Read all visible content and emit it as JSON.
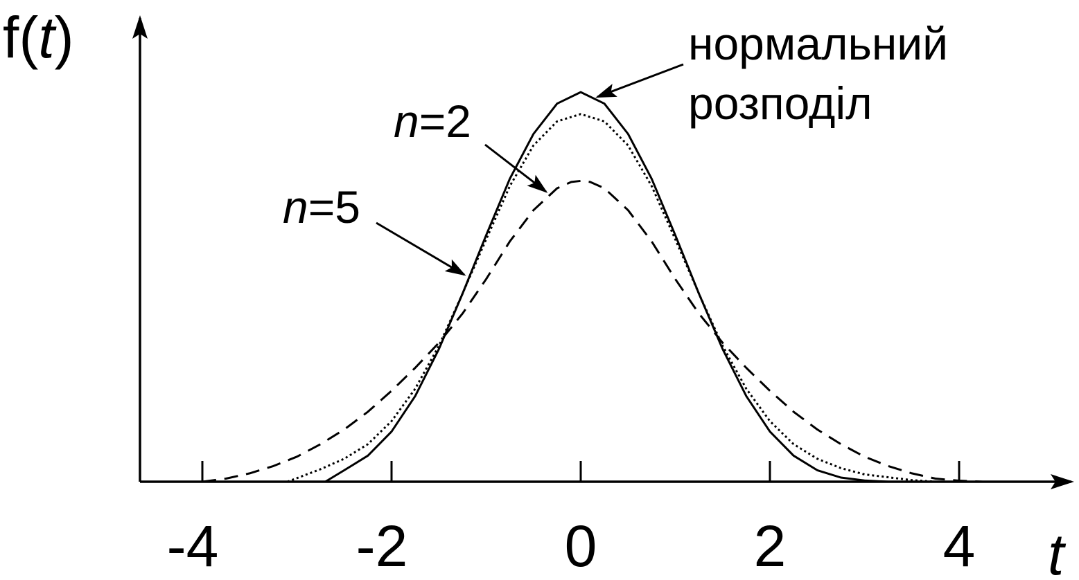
{
  "chart_data": {
    "type": "line",
    "title": "",
    "ylabel": {
      "prefix": "f(",
      "var": "t",
      "suffix": ")"
    },
    "xlabel": "t",
    "xlim": [
      -4.3,
      5.1
    ],
    "ylim": [
      0,
      0.44
    ],
    "grid": false,
    "xticks": [
      {
        "value": -4,
        "label": "-4"
      },
      {
        "value": -2,
        "label": "-2"
      },
      {
        "value": 0,
        "label": "0"
      },
      {
        "value": 2,
        "label": "2"
      },
      {
        "value": 4,
        "label": "4"
      }
    ],
    "series": [
      {
        "key": "normal",
        "style": "solid",
        "x": [
          -2.7,
          -2.5,
          -2.25,
          -2.0,
          -1.75,
          -1.5,
          -1.25,
          -1.0,
          -0.75,
          -0.5,
          -0.25,
          0.0,
          0.25,
          0.5,
          0.75,
          1.0,
          1.25,
          1.5,
          1.75,
          2.0,
          2.25,
          2.5,
          2.75,
          3.0,
          3.25
        ],
        "y": [
          0.0,
          0.011,
          0.025,
          0.048,
          0.082,
          0.127,
          0.18,
          0.236,
          0.29,
          0.333,
          0.362,
          0.373,
          0.362,
          0.333,
          0.29,
          0.236,
          0.18,
          0.127,
          0.082,
          0.048,
          0.025,
          0.011,
          0.004,
          0.0012,
          0.0
        ]
      },
      {
        "key": "n2",
        "style": "dotted",
        "x": [
          -3.1,
          -2.75,
          -2.5,
          -2.25,
          -2.0,
          -1.75,
          -1.5,
          -1.25,
          -1.0,
          -0.75,
          -0.5,
          -0.25,
          0.0,
          0.25,
          0.5,
          0.75,
          1.0,
          1.25,
          1.5,
          1.75,
          2.0,
          2.25,
          2.5,
          2.75,
          3.0,
          3.5,
          3.75
        ],
        "y": [
          0.0,
          0.012,
          0.022,
          0.036,
          0.058,
          0.089,
          0.13,
          0.18,
          0.232,
          0.283,
          0.322,
          0.345,
          0.352,
          0.345,
          0.322,
          0.283,
          0.232,
          0.18,
          0.13,
          0.089,
          0.058,
          0.036,
          0.022,
          0.013,
          0.007,
          0.0015,
          0.0
        ]
      },
      {
        "key": "n5",
        "style": "dashed",
        "x": [
          -4.0,
          -3.75,
          -3.5,
          -3.25,
          -3.0,
          -2.75,
          -2.5,
          -2.25,
          -2.0,
          -1.75,
          -1.5,
          -1.25,
          -1.0,
          -0.75,
          -0.5,
          -0.25,
          -0.1,
          0.0,
          0.1,
          0.25,
          0.5,
          0.75,
          1.0,
          1.25,
          1.5,
          1.75,
          2.0,
          2.25,
          2.5,
          2.75,
          3.0,
          3.25,
          3.5,
          3.75,
          4.0,
          4.25
        ],
        "y": [
          0.0,
          0.003,
          0.008,
          0.015,
          0.024,
          0.036,
          0.05,
          0.067,
          0.087,
          0.109,
          0.133,
          0.161,
          0.194,
          0.23,
          0.26,
          0.281,
          0.287,
          0.288,
          0.287,
          0.281,
          0.26,
          0.23,
          0.194,
          0.161,
          0.133,
          0.109,
          0.087,
          0.067,
          0.05,
          0.036,
          0.024,
          0.015,
          0.008,
          0.003,
          0.001,
          0.0
        ]
      }
    ],
    "annotations": [
      {
        "key": "normal",
        "lines": [
          "нормальний",
          "розподіл"
        ]
      },
      {
        "key": "n2",
        "var": "n",
        "text": "=2"
      },
      {
        "key": "n5",
        "var": "n",
        "text": "=5"
      }
    ]
  }
}
